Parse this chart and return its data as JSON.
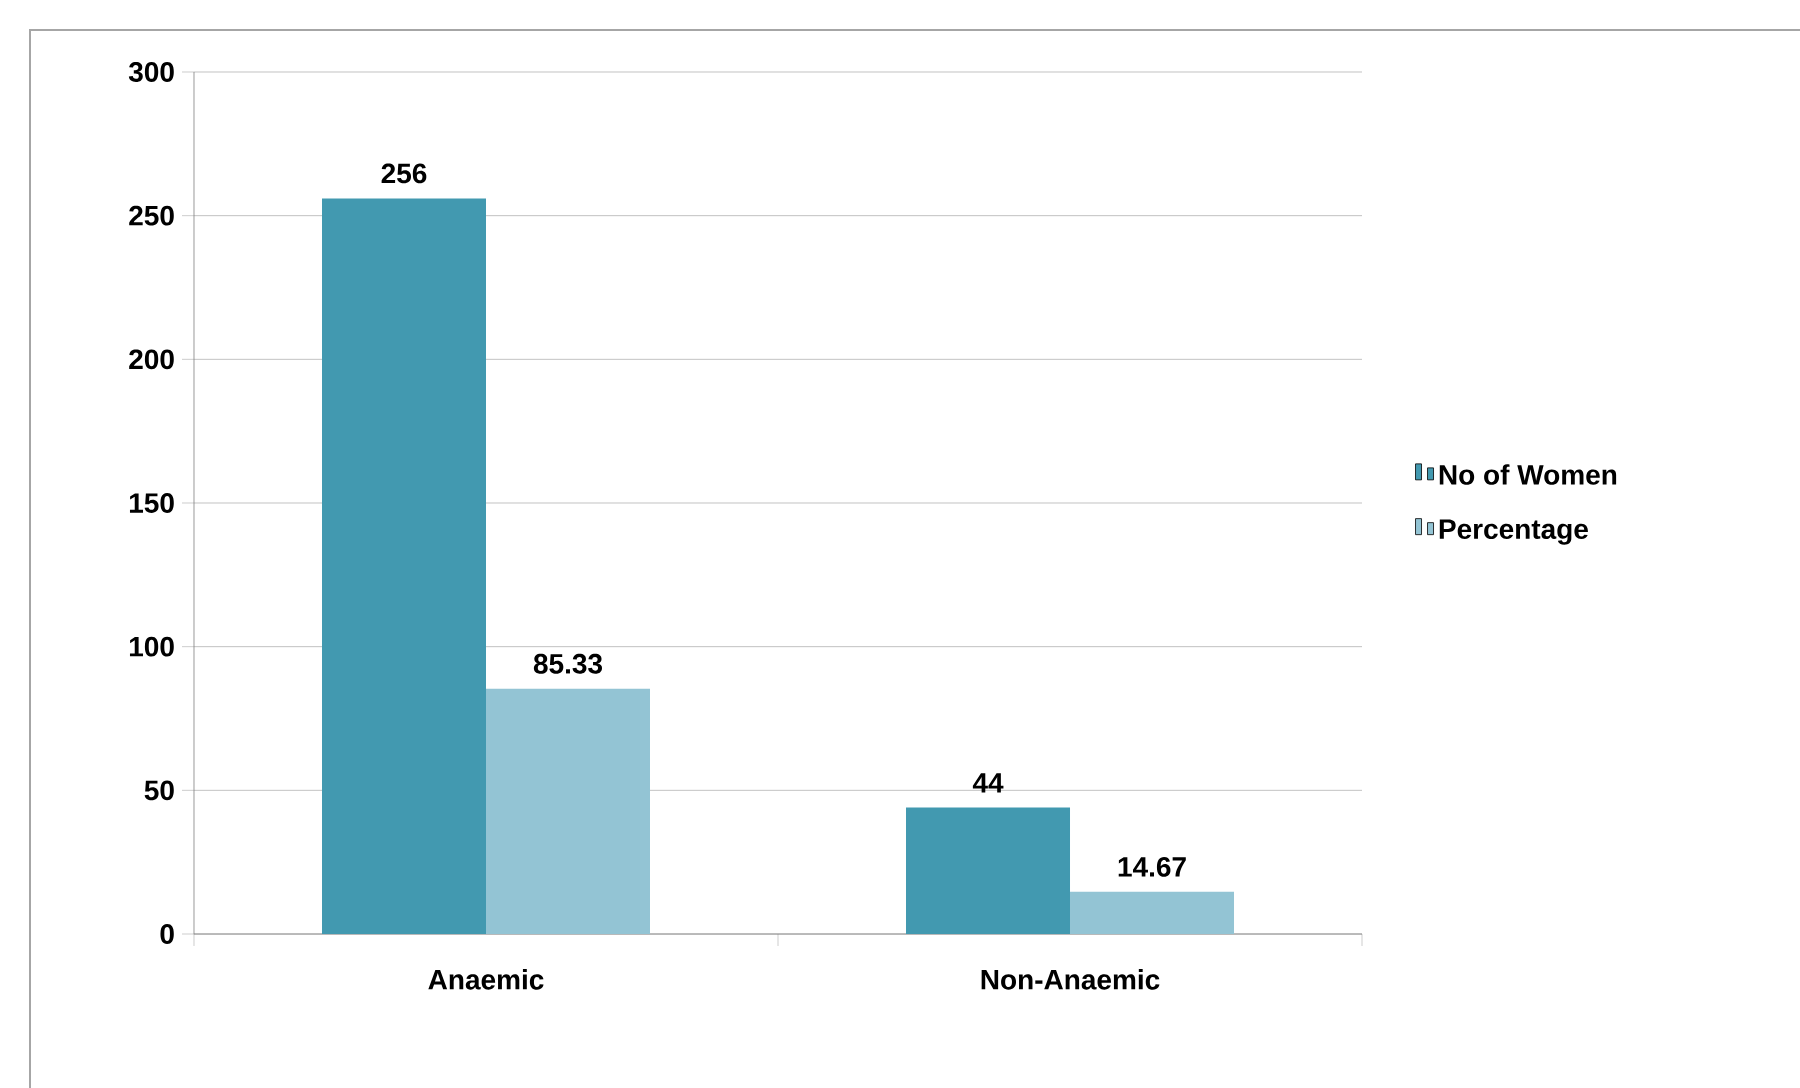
{
  "chart_data": {
    "type": "bar",
    "categories": [
      "Anaemic",
      "Non-Anaemic"
    ],
    "series": [
      {
        "name": "No of Women",
        "color": "#4299b0",
        "values": [
          256,
          44
        ]
      },
      {
        "name": "Percentage",
        "color": "#93c4d4",
        "values": [
          85.33,
          14.67
        ]
      }
    ],
    "ylim": [
      0,
      300
    ],
    "yticks": [
      0,
      50,
      100,
      150,
      200,
      250,
      300
    ],
    "grid": "y",
    "legend": "right",
    "data_labels": true
  }
}
